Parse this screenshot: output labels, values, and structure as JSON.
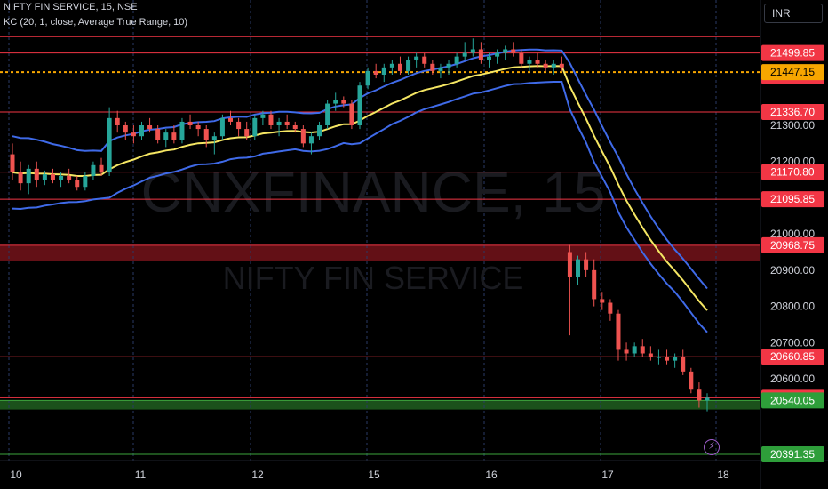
{
  "header": {
    "symbol_line": "NIFTY FIN SERVICE, 15, NSE",
    "indicator_line": "KC (20, 1, close, Average True Range, 10)"
  },
  "currency_button": "INR",
  "watermark": {
    "ticker": "CNXFINANCE, 15",
    "name": "NIFTY FIN SERVICE"
  },
  "colors": {
    "background": "#000000",
    "up_candle": "#26a69a",
    "down_candle": "#ef5350",
    "keltner_upper_lower": "#3f6ae8",
    "keltner_basis": "#f5e663",
    "level_line": "#f23645",
    "current_price": "#f7a600",
    "support_zone": "#1e5a1e",
    "resistance_zone": "#6e1218"
  },
  "icons": {
    "bolt": "lightning-bolt-icon"
  },
  "chart_data": {
    "type": "candlestick",
    "x_ticks": [
      "10",
      "11",
      "12",
      "15",
      "16",
      "17",
      "18"
    ],
    "y_range": [
      20380,
      21560
    ],
    "y_ticks": [
      20600,
      20700,
      20800,
      20900,
      21000,
      21100,
      21200,
      21300
    ],
    "y_tick_labels": [
      "20600.00",
      "20700.00",
      "20800.00",
      "20900.00",
      "21000.00",
      "21100.00",
      "21200.00",
      "21300.00"
    ],
    "current_price": {
      "value": 21447.15,
      "label": "21447.15"
    },
    "horizontal_levels": [
      {
        "value": 21545,
        "label": ""
      },
      {
        "value": 21499.85,
        "label": "21499.85"
      },
      {
        "value": 21436.2,
        "label": "21436.20"
      },
      {
        "value": 21336.7,
        "label": "21336.70"
      },
      {
        "value": 21170.8,
        "label": "21170.80"
      },
      {
        "value": 21095.85,
        "label": "21095.85"
      },
      {
        "value": 20968.75,
        "label": "20968.75"
      },
      {
        "value": 20660.85,
        "label": "20660.85"
      },
      {
        "value": 20547.6,
        "label": "20547.60"
      }
    ],
    "support_level": {
      "value": 20540.05,
      "label": "20540.05"
    },
    "bottom_level": {
      "value": 20391.35,
      "label": "20391.35"
    },
    "zones": [
      {
        "type": "resistance",
        "from": 20925,
        "to": 20968.75
      },
      {
        "type": "support",
        "from": 20515,
        "to": 20540.05
      }
    ],
    "candles": [
      [
        21220,
        21250,
        21150,
        21170
      ],
      [
        21170,
        21200,
        21120,
        21140
      ],
      [
        21140,
        21190,
        21110,
        21180
      ],
      [
        21180,
        21200,
        21130,
        21150
      ],
      [
        21150,
        21175,
        21135,
        21165
      ],
      [
        21165,
        21180,
        21140,
        21150
      ],
      [
        21150,
        21170,
        21130,
        21160
      ],
      [
        21160,
        21180,
        21140,
        21150
      ],
      [
        21150,
        21160,
        21120,
        21130
      ],
      [
        21130,
        21170,
        21120,
        21160
      ],
      [
        21160,
        21200,
        21150,
        21190
      ],
      [
        21190,
        21210,
        21160,
        21170
      ],
      [
        21170,
        21350,
        21160,
        21320
      ],
      [
        21320,
        21340,
        21280,
        21300
      ],
      [
        21300,
        21310,
        21260,
        21280
      ],
      [
        21280,
        21300,
        21250,
        21270
      ],
      [
        21270,
        21310,
        21260,
        21300
      ],
      [
        21300,
        21320,
        21280,
        21290
      ],
      [
        21290,
        21300,
        21250,
        21260
      ],
      [
        21260,
        21290,
        21240,
        21280
      ],
      [
        21280,
        21300,
        21250,
        21260
      ],
      [
        21260,
        21320,
        21250,
        21310
      ],
      [
        21310,
        21330,
        21290,
        21300
      ],
      [
        21300,
        21310,
        21270,
        21290
      ],
      [
        21290,
        21300,
        21240,
        21260
      ],
      [
        21260,
        21280,
        21220,
        21270
      ],
      [
        21270,
        21330,
        21260,
        21320
      ],
      [
        21320,
        21340,
        21300,
        21310
      ],
      [
        21310,
        21320,
        21270,
        21290
      ],
      [
        21290,
        21310,
        21260,
        21270
      ],
      [
        21270,
        21330,
        21260,
        21320
      ],
      [
        21320,
        21340,
        21300,
        21330
      ],
      [
        21330,
        21340,
        21290,
        21300
      ],
      [
        21300,
        21320,
        21270,
        21310
      ],
      [
        21310,
        21330,
        21290,
        21300
      ],
      [
        21300,
        21310,
        21280,
        21290
      ],
      [
        21290,
        21300,
        21240,
        21250
      ],
      [
        21250,
        21280,
        21220,
        21270
      ],
      [
        21270,
        21310,
        21260,
        21300
      ],
      [
        21300,
        21370,
        21290,
        21360
      ],
      [
        21360,
        21390,
        21340,
        21370
      ],
      [
        21370,
        21380,
        21350,
        21360
      ],
      [
        21360,
        21370,
        21290,
        21300
      ],
      [
        21300,
        21420,
        21290,
        21410
      ],
      [
        21410,
        21460,
        21400,
        21450
      ],
      [
        21450,
        21470,
        21430,
        21440
      ],
      [
        21440,
        21470,
        21420,
        21460
      ],
      [
        21460,
        21480,
        21440,
        21470
      ],
      [
        21470,
        21490,
        21440,
        21450
      ],
      [
        21450,
        21490,
        21440,
        21480
      ],
      [
        21480,
        21500,
        21460,
        21490
      ],
      [
        21490,
        21500,
        21460,
        21470
      ],
      [
        21470,
        21480,
        21440,
        21450
      ],
      [
        21450,
        21470,
        21430,
        21460
      ],
      [
        21460,
        21480,
        21440,
        21470
      ],
      [
        21470,
        21500,
        21460,
        21490
      ],
      [
        21490,
        21530,
        21480,
        21500
      ],
      [
        21500,
        21540,
        21490,
        21510
      ],
      [
        21510,
        21530,
        21470,
        21480
      ],
      [
        21480,
        21500,
        21460,
        21490
      ],
      [
        21490,
        21510,
        21470,
        21500
      ],
      [
        21500,
        21520,
        21480,
        21510
      ],
      [
        21510,
        21530,
        21490,
        21500
      ],
      [
        21500,
        21510,
        21460,
        21470
      ],
      [
        21470,
        21490,
        21450,
        21480
      ],
      [
        21480,
        21500,
        21460,
        21470
      ],
      [
        21470,
        21480,
        21450,
        21460
      ],
      [
        21460,
        21480,
        21440,
        21470
      ],
      [
        21470,
        21490,
        21450,
        21460
      ],
      [
        20950,
        20970,
        20720,
        20880
      ],
      [
        20880,
        20940,
        20860,
        20930
      ],
      [
        20930,
        20950,
        20880,
        20900
      ],
      [
        20900,
        20930,
        20800,
        20820
      ],
      [
        20820,
        20840,
        20790,
        20810
      ],
      [
        20810,
        20820,
        20760,
        20780
      ],
      [
        20780,
        20790,
        20650,
        20680
      ],
      [
        20680,
        20700,
        20650,
        20670
      ],
      [
        20670,
        20700,
        20660,
        20690
      ],
      [
        20690,
        20710,
        20660,
        20670
      ],
      [
        20670,
        20690,
        20650,
        20660
      ],
      [
        20660,
        20680,
        20640,
        20660
      ],
      [
        20660,
        20680,
        20640,
        20650
      ],
      [
        20650,
        20670,
        20630,
        20660
      ],
      [
        20660,
        20680,
        20610,
        20620
      ],
      [
        20620,
        20630,
        20560,
        20570
      ],
      [
        20570,
        20590,
        20520,
        20540
      ],
      [
        20540,
        20560,
        20510,
        20547.6
      ]
    ]
  }
}
